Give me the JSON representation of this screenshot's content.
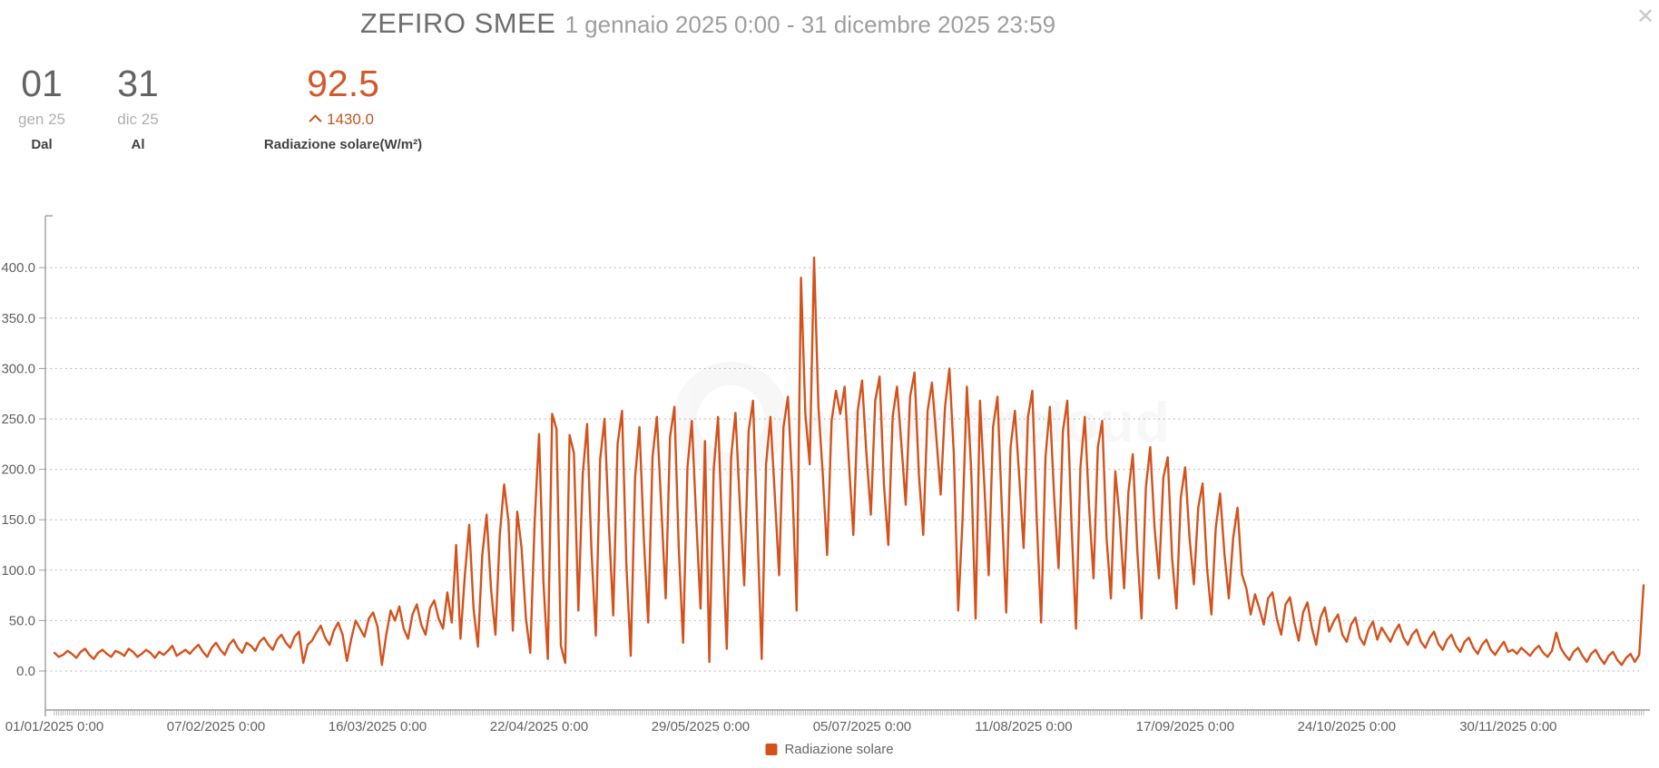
{
  "header": {
    "title": "ZEFIRO SMEE",
    "subtitle": "1 gennaio 2025 0:00 - 31 dicembre 2025 23:59",
    "close_glyph": "✕"
  },
  "controls": {
    "from": {
      "day": "01",
      "month": "gen 25",
      "label": "Dal"
    },
    "to": {
      "day": "31",
      "month": "dic 25",
      "label": "Al"
    },
    "metric": {
      "value": "92.5",
      "max": "1430.0",
      "label": "Radiazione solare(W/m²)"
    }
  },
  "legend": {
    "label": "Radiazione solare",
    "color": "#d3521c"
  },
  "watermark": "weathercloud",
  "colors": {
    "line": "#d3521c",
    "axis": "#9e9e9e",
    "grid": "#a6a6a6",
    "tick_label": "#616161"
  },
  "chart_data": {
    "type": "line",
    "title": "ZEFIRO SMEE — Radiazione solare",
    "series_name": "Radiazione solare",
    "unit": "W/m²",
    "xlabel": "",
    "ylabel": "Radiazione solare (W/m²)",
    "ylim": [
      -38,
      452
    ],
    "grid": "dotted-horizontal",
    "legend_position": "bottom-center",
    "y_ticks": [
      0,
      50,
      100,
      150,
      200,
      250,
      300,
      350,
      400
    ],
    "x_tick_labels": [
      {
        "label": "01/01/2025 0:00",
        "day": 0
      },
      {
        "label": "07/02/2025 0:00",
        "day": 37
      },
      {
        "label": "16/03/2025 0:00",
        "day": 74
      },
      {
        "label": "22/04/2025 0:00",
        "day": 111
      },
      {
        "label": "29/05/2025 0:00",
        "day": 148
      },
      {
        "label": "05/07/2025 0:00",
        "day": 185
      },
      {
        "label": "11/08/2025 0:00",
        "day": 222
      },
      {
        "label": "17/09/2025 0:00",
        "day": 259
      },
      {
        "label": "24/10/2025 0:00",
        "day": 296
      },
      {
        "label": "30/11/2025 0:00",
        "day": 333
      }
    ],
    "x_start": "01/01/2025",
    "x_step_days": 1,
    "values": [
      18,
      14,
      16,
      20,
      17,
      13,
      19,
      22,
      16,
      12,
      18,
      21,
      17,
      14,
      20,
      18,
      15,
      22,
      19,
      14,
      17,
      21,
      18,
      13,
      19,
      16,
      20,
      25,
      15,
      18,
      21,
      17,
      22,
      26,
      19,
      14,
      23,
      28,
      21,
      16,
      26,
      31,
      23,
      18,
      28,
      25,
      20,
      29,
      33,
      26,
      21,
      31,
      36,
      28,
      23,
      34,
      39,
      8,
      26,
      30,
      38,
      45,
      33,
      26,
      40,
      48,
      36,
      10,
      32,
      50,
      42,
      34,
      52,
      58,
      44,
      6,
      36,
      60,
      50,
      64,
      42,
      32,
      56,
      66,
      46,
      36,
      62,
      70,
      52,
      42,
      78,
      48,
      125,
      32,
      95,
      145,
      62,
      24,
      115,
      155,
      82,
      36,
      135,
      185,
      148,
      40,
      158,
      122,
      52,
      18,
      148,
      235,
      88,
      12,
      255,
      240,
      25,
      8,
      234,
      216,
      60,
      195,
      245,
      120,
      35,
      210,
      250,
      145,
      55,
      225,
      258,
      105,
      15,
      192,
      242,
      132,
      48,
      212,
      252,
      162,
      72,
      232,
      262,
      122,
      28,
      202,
      248,
      152,
      62,
      228,
      9,
      200,
      252,
      130,
      22,
      212,
      256,
      165,
      85,
      238,
      268,
      142,
      12,
      205,
      252,
      175,
      95,
      242,
      272,
      185,
      60,
      390,
      255,
      205,
      410,
      262,
      195,
      115,
      248,
      278,
      255,
      282,
      205,
      135,
      258,
      288,
      215,
      155,
      268,
      292,
      185,
      125,
      252,
      282,
      225,
      165,
      272,
      296,
      195,
      135,
      258,
      286,
      232,
      175,
      262,
      300,
      215,
      60,
      150,
      282,
      198,
      52,
      268,
      185,
      95,
      242,
      272,
      162,
      58,
      222,
      258,
      192,
      122,
      252,
      278,
      152,
      48,
      212,
      262,
      172,
      102,
      238,
      268,
      142,
      42,
      202,
      252,
      162,
      92,
      222,
      248,
      132,
      72,
      198,
      152,
      82,
      178,
      215,
      122,
      52,
      182,
      222,
      142,
      92,
      192,
      212,
      112,
      62,
      172,
      202,
      132,
      86,
      162,
      186,
      102,
      56,
      142,
      176,
      116,
      72,
      132,
      162,
      96,
      82,
      56,
      76,
      62,
      46,
      72,
      78,
      52,
      36,
      66,
      73,
      48,
      30,
      58,
      68,
      43,
      26,
      53,
      63,
      39,
      49,
      56,
      36,
      29,
      46,
      53,
      33,
      26,
      41,
      49,
      31,
      43,
      36,
      29,
      39,
      46,
      33,
      26,
      36,
      41,
      29,
      23,
      33,
      39,
      27,
      21,
      31,
      36,
      25,
      19,
      29,
      33,
      23,
      17,
      26,
      31,
      21,
      16,
      23,
      29,
      19,
      21,
      17,
      23,
      19,
      15,
      21,
      25,
      18,
      14,
      20,
      38,
      23,
      16,
      11,
      19,
      23,
      15,
      9,
      17,
      21,
      13,
      7,
      15,
      19,
      11,
      6,
      13,
      17,
      9,
      16,
      85
    ]
  }
}
